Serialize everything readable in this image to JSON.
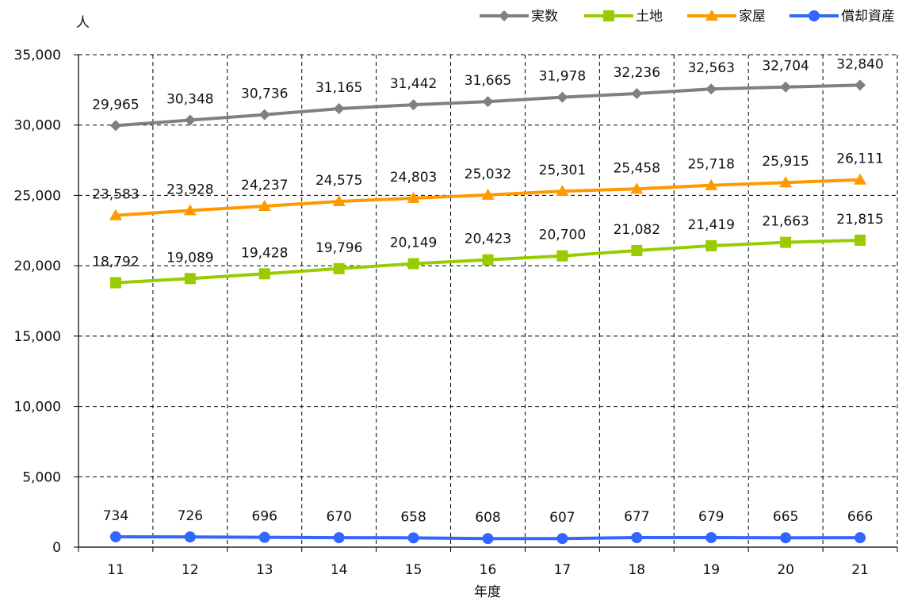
{
  "chart_data": {
    "type": "line",
    "categories": [
      "11",
      "12",
      "13",
      "14",
      "15",
      "16",
      "17",
      "18",
      "19",
      "20",
      "21"
    ],
    "series": [
      {
        "name": "実数",
        "color": "#808080",
        "marker": "diamond",
        "values": [
          29965,
          30348,
          30736,
          31165,
          31442,
          31665,
          31978,
          32236,
          32563,
          32704,
          32840
        ],
        "labels": [
          "29,965",
          "30,348",
          "30,736",
          "31,165",
          "31,442",
          "31,665",
          "31,978",
          "32,236",
          "32,563",
          "32,704",
          "32,840"
        ]
      },
      {
        "name": "土地",
        "color": "#99CC00",
        "marker": "square",
        "values": [
          18792,
          19089,
          19428,
          19796,
          20149,
          20423,
          20700,
          21082,
          21419,
          21663,
          21815
        ],
        "labels": [
          "18,792",
          "19,089",
          "19,428",
          "19,796",
          "20,149",
          "20,423",
          "20,700",
          "21,082",
          "21,419",
          "21,663",
          "21,815"
        ]
      },
      {
        "name": "家屋",
        "color": "#FF9900",
        "marker": "triangle",
        "values": [
          23583,
          23928,
          24237,
          24575,
          24803,
          25032,
          25301,
          25458,
          25718,
          25915,
          26111
        ],
        "labels": [
          "23,583",
          "23,928",
          "24,237",
          "24,575",
          "24,803",
          "25,032",
          "25,301",
          "25,458",
          "25,718",
          "25,915",
          "26,111"
        ]
      },
      {
        "name": "償却資産",
        "color": "#3366FF",
        "marker": "circle",
        "values": [
          734,
          726,
          696,
          670,
          658,
          608,
          607,
          677,
          679,
          665,
          666
        ],
        "labels": [
          "734",
          "726",
          "696",
          "670",
          "658",
          "608",
          "607",
          "677",
          "679",
          "665",
          "666"
        ]
      }
    ],
    "ylim": [
      0,
      35000
    ],
    "yticks": [
      0,
      5000,
      10000,
      15000,
      20000,
      25000,
      30000,
      35000
    ],
    "ytick_labels": [
      "0",
      "5,000",
      "10,000",
      "15,000",
      "20,000",
      "25,000",
      "30,000",
      "35,000"
    ],
    "ylabel": "人",
    "xlabel": "年度",
    "grid": "dashed",
    "legend_position": "top-right"
  }
}
